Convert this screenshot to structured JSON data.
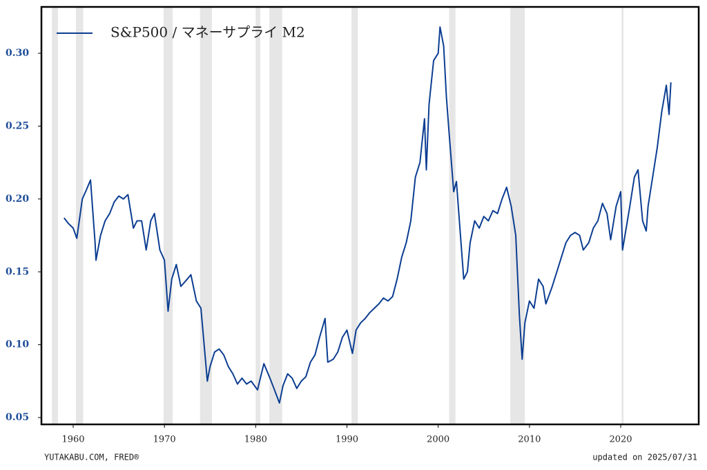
{
  "chart_data": {
    "type": "line",
    "legend_corner": "upper-left",
    "source": "YUTAKABU.COM, FRED®",
    "updated": "updated on 2025/07/31",
    "xlim": [
      1956.52,
      2028.55
    ],
    "ylim": [
      0.0453,
      0.3318
    ],
    "xticks": [
      1960,
      1970,
      1980,
      1990,
      2000,
      2010,
      2020
    ],
    "yticks": [
      0.05,
      {
        "value": 0.1,
        "label": "0.10"
      },
      0.15,
      {
        "value": 0.2,
        "label": "0.20"
      },
      0.25,
      {
        "value": 0.3,
        "label": "0.30"
      }
    ],
    "shade_color": "#e6e6e6",
    "shaded_regions": [
      [
        1957.67,
        1958.33
      ],
      [
        1960.3,
        1961.1
      ],
      [
        1969.9,
        1970.9
      ],
      [
        1973.9,
        1975.2
      ],
      [
        1980.0,
        1980.5
      ],
      [
        1981.5,
        1982.9
      ],
      [
        1990.5,
        1991.2
      ],
      [
        2001.2,
        2001.9
      ],
      [
        2007.9,
        2009.5
      ],
      [
        2020.1,
        2020.3
      ]
    ],
    "x": [
      1959.0,
      1959.5,
      1960.0,
      1960.4,
      1961.0,
      1961.5,
      1961.9,
      1962.4,
      1962.5,
      1963.0,
      1963.5,
      1964.0,
      1964.5,
      1965.0,
      1965.5,
      1966.0,
      1966.6,
      1967.0,
      1967.5,
      1968.0,
      1968.5,
      1968.9,
      1969.5,
      1970.0,
      1970.4,
      1970.8,
      1971.3,
      1971.8,
      1972.5,
      1972.9,
      1973.5,
      1974.0,
      1974.7,
      1975.0,
      1975.5,
      1976.0,
      1976.5,
      1977.0,
      1977.5,
      1978.0,
      1978.5,
      1979.0,
      1979.5,
      1980.2,
      1980.9,
      1981.5,
      1982.0,
      1982.6,
      1983.0,
      1983.5,
      1984.0,
      1984.5,
      1985.0,
      1985.5,
      1986.0,
      1986.5,
      1987.0,
      1987.6,
      1987.9,
      1988.5,
      1989.0,
      1989.5,
      1990.0,
      1990.6,
      1991.0,
      1991.5,
      1992.0,
      1992.5,
      1993.0,
      1993.5,
      1994.0,
      1994.5,
      1995.0,
      1995.5,
      1996.0,
      1996.5,
      1997.0,
      1997.5,
      1998.0,
      1998.5,
      1998.7,
      1999.0,
      1999.5,
      2000.0,
      2000.2,
      2000.6,
      2000.9,
      2001.2,
      2001.7,
      2002.0,
      2002.5,
      2002.8,
      2003.2,
      2003.5,
      2004.0,
      2004.5,
      2005.0,
      2005.5,
      2006.0,
      2006.5,
      2007.0,
      2007.5,
      2008.0,
      2008.5,
      2008.9,
      2009.2,
      2009.5,
      2010.0,
      2010.5,
      2011.0,
      2011.5,
      2011.8,
      2012.5,
      2013.0,
      2013.5,
      2014.0,
      2014.5,
      2015.0,
      2015.5,
      2015.9,
      2016.5,
      2017.0,
      2017.5,
      2018.0,
      2018.5,
      2018.9,
      2019.5,
      2020.0,
      2020.2,
      2020.6,
      2021.0,
      2021.5,
      2021.9,
      2022.4,
      2022.8,
      2023.0,
      2023.5,
      2024.0,
      2024.5,
      2025.0,
      2025.3,
      2025.5
    ],
    "series": [
      {
        "name": "S&P500 / マネーサプライ M2",
        "color": "#0b3d91",
        "values": [
          0.187,
          0.183,
          0.18,
          0.173,
          0.2,
          0.207,
          0.213,
          0.17,
          0.158,
          0.175,
          0.185,
          0.19,
          0.198,
          0.202,
          0.2,
          0.203,
          0.18,
          0.185,
          0.185,
          0.165,
          0.185,
          0.19,
          0.165,
          0.158,
          0.123,
          0.145,
          0.155,
          0.14,
          0.145,
          0.148,
          0.13,
          0.125,
          0.075,
          0.085,
          0.095,
          0.097,
          0.093,
          0.085,
          0.08,
          0.073,
          0.077,
          0.073,
          0.075,
          0.069,
          0.087,
          0.078,
          0.07,
          0.06,
          0.072,
          0.08,
          0.077,
          0.07,
          0.075,
          0.078,
          0.088,
          0.093,
          0.105,
          0.118,
          0.088,
          0.09,
          0.095,
          0.105,
          0.11,
          0.094,
          0.11,
          0.115,
          0.118,
          0.122,
          0.125,
          0.128,
          0.132,
          0.13,
          0.133,
          0.145,
          0.16,
          0.17,
          0.185,
          0.215,
          0.225,
          0.255,
          0.22,
          0.265,
          0.295,
          0.3,
          0.318,
          0.305,
          0.27,
          0.245,
          0.205,
          0.212,
          0.17,
          0.145,
          0.15,
          0.17,
          0.185,
          0.18,
          0.188,
          0.185,
          0.192,
          0.19,
          0.2,
          0.208,
          0.195,
          0.175,
          0.12,
          0.09,
          0.115,
          0.13,
          0.125,
          0.145,
          0.14,
          0.128,
          0.14,
          0.15,
          0.16,
          0.17,
          0.175,
          0.177,
          0.175,
          0.165,
          0.17,
          0.18,
          0.185,
          0.197,
          0.19,
          0.172,
          0.195,
          0.205,
          0.165,
          0.18,
          0.195,
          0.215,
          0.22,
          0.185,
          0.178,
          0.195,
          0.215,
          0.235,
          0.26,
          0.278,
          0.258,
          0.28
        ]
      }
    ]
  }
}
